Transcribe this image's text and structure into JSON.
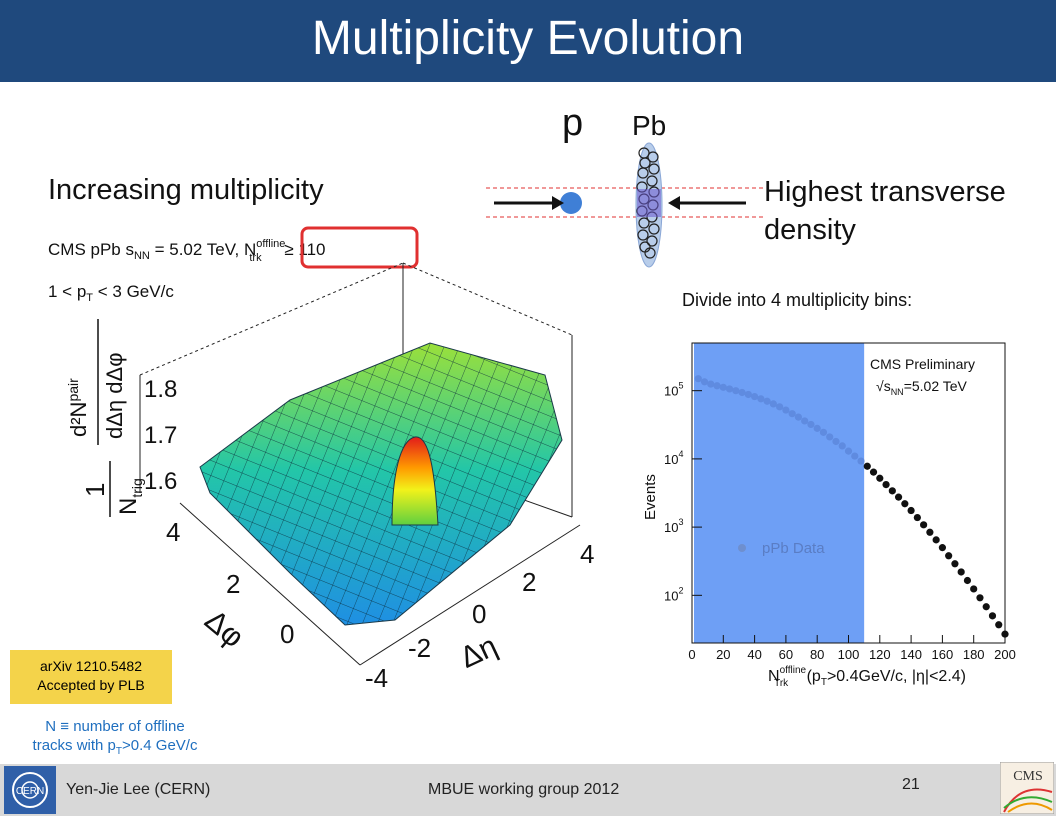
{
  "slide": {
    "title": "Multiplicity Evolution",
    "left_heading": "Increasing multiplicity",
    "right_heading_line1": "Highest transverse",
    "right_heading_line2": "density",
    "collision_p": "p",
    "collision_pb": "Pb",
    "divide_text": "Divide into 4 multiplicity bins:",
    "arxiv_line1": "arXiv 1210.5482",
    "arxiv_line2": "Accepted by PLB",
    "note_line1": "N ≡ number of offline",
    "note_line2": "tracks with p",
    "note_sub": "T",
    "note_line2_tail": ">0.4 GeV/c",
    "footer_author": "Yen-Jie Lee (CERN)",
    "footer_group": "MBUE working group 2012",
    "page_number": "21",
    "cern_logo": "CERN",
    "cms_logo": "CMS"
  },
  "surface_plot": {
    "label_line1_pre": "CMS pPb ",
    "label_sqrt": "s",
    "label_sqrt_sub": "NN",
    "label_line1_mid": " = 5.02 TeV, ",
    "label_ntrk": "N",
    "label_ntrk_sup": "offline",
    "label_ntrk_sub": "trk",
    "label_ntrk_tail": " ≥ 110",
    "label_line2_pre": "1 < p",
    "label_line2_sub": "T",
    "label_line2_tail": " < 3 GeV/c",
    "z_ticks": [
      "1.8",
      "1.7",
      "1.6"
    ],
    "phi_ticks": [
      "4",
      "2",
      "0"
    ],
    "eta_ticks": [
      "4",
      "2",
      "0",
      "-2",
      "-4"
    ],
    "phi_label": "Δφ",
    "eta_label": "Δη",
    "zlabel_one": "1",
    "zlabel_ntrig": "N",
    "zlabel_ntrig_sub": "trig",
    "zlabel_num": "d²N",
    "zlabel_num_sup": "pair",
    "zlabel_den": "dΔη dΔφ",
    "highlight_color": "#e03030"
  },
  "chart_data": {
    "type": "scatter",
    "title": "CMS Preliminary",
    "subtitle_pre": "s",
    "subtitle_sub": "NN",
    "subtitle_tail": "=5.02 TeV",
    "xlabel_main": "N",
    "xlabel_sup": "offline",
    "xlabel_sub": "Trk",
    "xlabel_tail": " (p",
    "xlabel_tail_sub": "T",
    "xlabel_tail2": ">0.4GeV/c, |η|<2.4)",
    "ylabel": "Events",
    "legend": "pPb Data",
    "log_y": true,
    "xlim": [
      0,
      200
    ],
    "ylim": [
      20,
      500000
    ],
    "x_ticks": [
      "0",
      "20",
      "40",
      "60",
      "80",
      "100",
      "120",
      "140",
      "160",
      "180",
      "200"
    ],
    "y_ticks": [
      {
        "base": "10",
        "exp": "2"
      },
      {
        "base": "10",
        "exp": "3"
      },
      {
        "base": "10",
        "exp": "4"
      },
      {
        "base": "10",
        "exp": "5"
      }
    ],
    "shaded_region": [
      0,
      110
    ],
    "shade_color": "#6e9ff5",
    "series": [
      {
        "name": "pPb Data",
        "x": [
          4,
          8,
          12,
          16,
          20,
          24,
          28,
          32,
          36,
          40,
          44,
          48,
          52,
          56,
          60,
          64,
          68,
          72,
          76,
          80,
          84,
          88,
          92,
          96,
          100,
          104,
          108,
          112,
          116,
          120,
          124,
          128,
          132,
          136,
          140,
          144,
          148,
          152,
          156,
          160,
          164,
          168,
          172,
          176,
          180,
          184,
          188,
          192,
          196,
          200
        ],
        "y": [
          150000,
          135000,
          125000,
          118000,
          112000,
          106000,
          100000,
          94000,
          88000,
          82000,
          76000,
          70000,
          64000,
          58000,
          52000,
          46000,
          41000,
          36000,
          32000,
          28000,
          24500,
          21000,
          18000,
          15500,
          13000,
          11000,
          9300,
          7800,
          6400,
          5200,
          4200,
          3400,
          2750,
          2200,
          1750,
          1380,
          1080,
          840,
          650,
          500,
          380,
          290,
          220,
          165,
          124,
          92,
          68,
          50,
          37,
          27
        ]
      }
    ]
  }
}
